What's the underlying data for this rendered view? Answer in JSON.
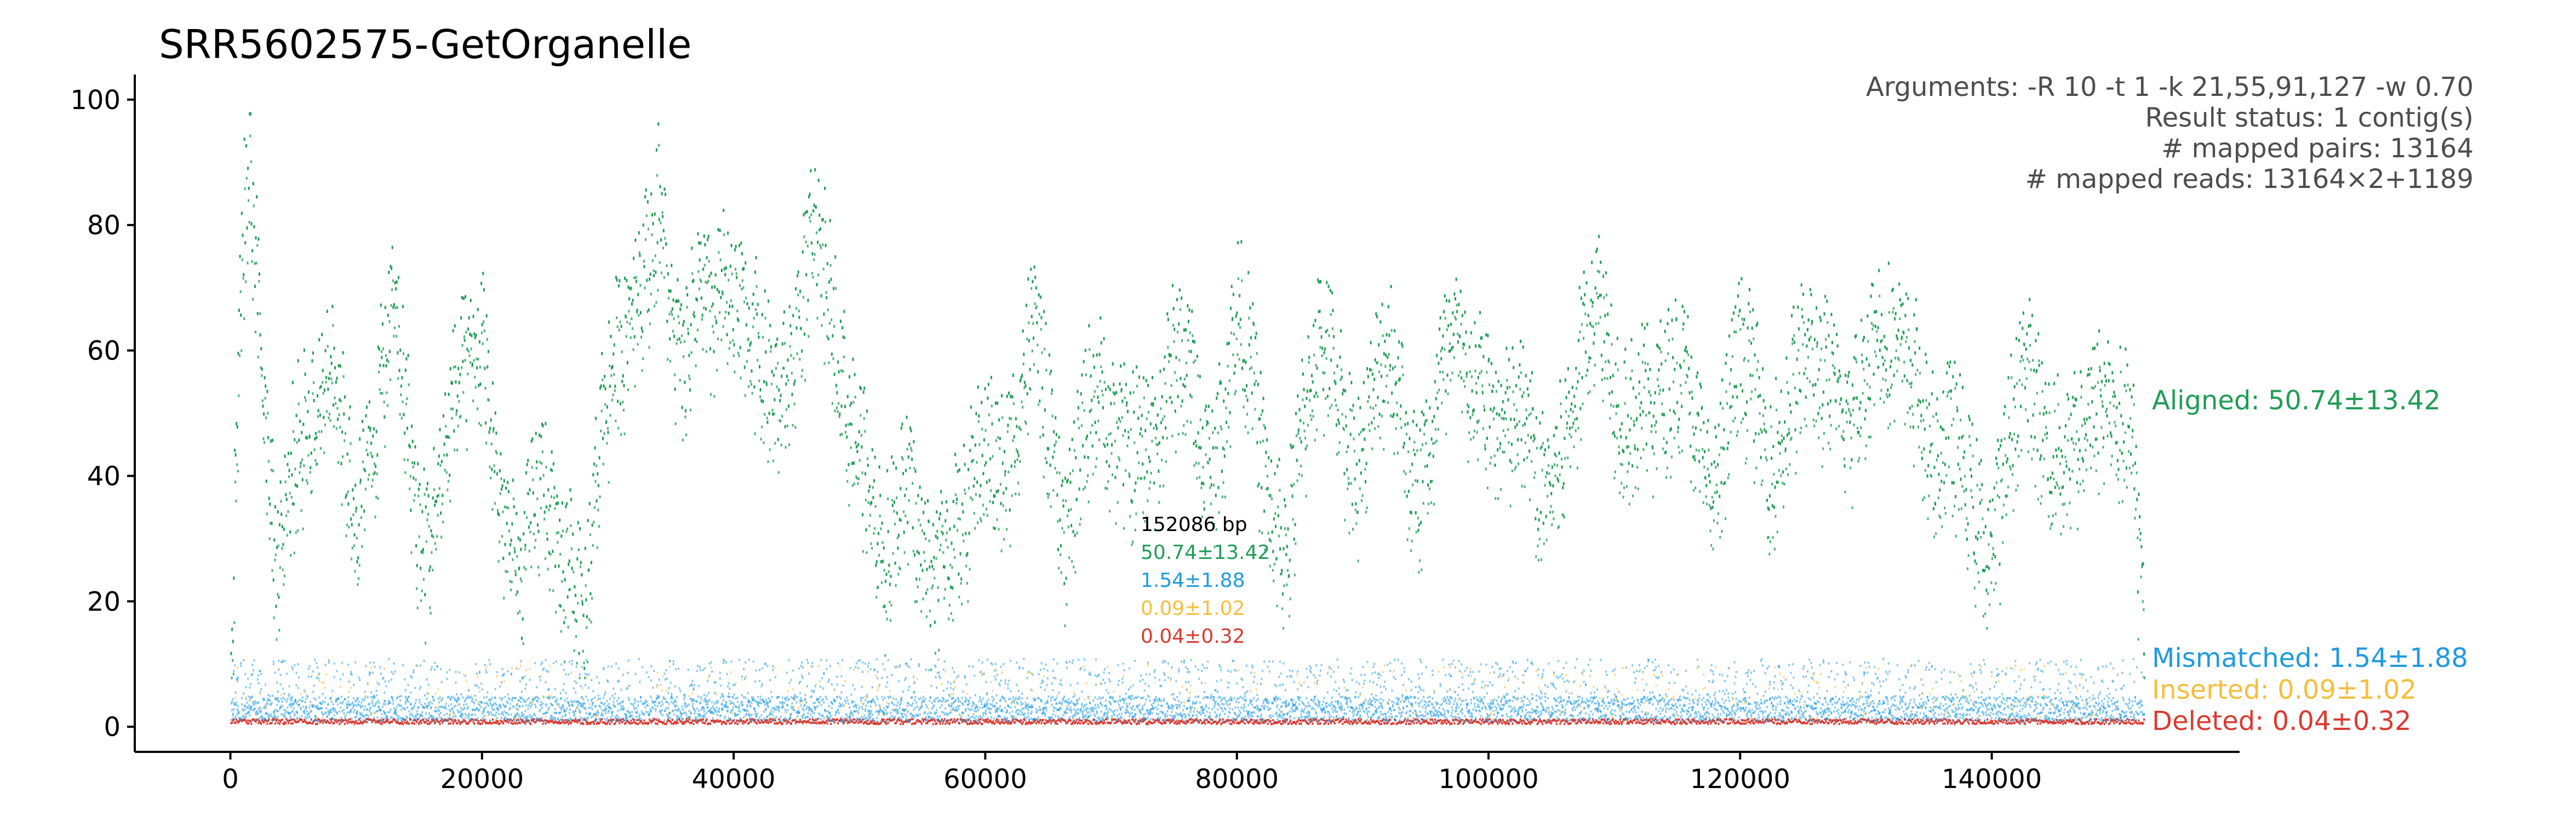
{
  "chart_data": {
    "type": "scatter",
    "title": "SRR5602575-GetOrganelle",
    "xlabel": "",
    "ylabel": "",
    "xlim": [
      -7600,
      159700
    ],
    "ylim": [
      -4,
      104
    ],
    "x_ticks": [
      0,
      20000,
      40000,
      60000,
      80000,
      100000,
      120000,
      140000
    ],
    "y_ticks": [
      0,
      20,
      40,
      60,
      80,
      100
    ],
    "grid": false,
    "genome_length_bp": 152086,
    "info_lines": [
      "Arguments: -R 10 -t 1 -k 21,55,91,127 -w 0.70",
      "Result status: 1 contig(s)",
      "# mapped pairs: 13164",
      "# mapped reads: 13164×2+1189"
    ],
    "middle_labels": {
      "length": "152086 bp",
      "aligned": "50.74±13.42",
      "mismatched": "1.54±1.88",
      "inserted": "0.09±1.02",
      "deleted": "0.04±0.32"
    },
    "series": [
      {
        "name": "Aligned",
        "label": "Aligned: 50.74±13.42",
        "color": "#1f9d55",
        "mean": 50.74,
        "sd": 13.42,
        "profile": [
          {
            "x": 0,
            "y": 10
          },
          {
            "x": 800,
            "y": 72
          },
          {
            "x": 1500,
            "y": 84
          },
          {
            "x": 2500,
            "y": 55
          },
          {
            "x": 3500,
            "y": 35
          },
          {
            "x": 5000,
            "y": 52
          },
          {
            "x": 7000,
            "y": 44
          },
          {
            "x": 8000,
            "y": 60
          },
          {
            "x": 10000,
            "y": 44
          },
          {
            "x": 12000,
            "y": 52
          },
          {
            "x": 13000,
            "y": 62
          },
          {
            "x": 15000,
            "y": 38
          },
          {
            "x": 17000,
            "y": 46
          },
          {
            "x": 19000,
            "y": 52
          },
          {
            "x": 20000,
            "y": 66
          },
          {
            "x": 22000,
            "y": 38
          },
          {
            "x": 23000,
            "y": 20
          },
          {
            "x": 25000,
            "y": 38
          },
          {
            "x": 26000,
            "y": 30
          },
          {
            "x": 27000,
            "y": 40
          },
          {
            "x": 28000,
            "y": 20
          },
          {
            "x": 29500,
            "y": 44
          },
          {
            "x": 31000,
            "y": 62
          },
          {
            "x": 32000,
            "y": 80
          },
          {
            "x": 34000,
            "y": 86
          },
          {
            "x": 35000,
            "y": 58
          },
          {
            "x": 36000,
            "y": 50
          },
          {
            "x": 37000,
            "y": 74
          },
          {
            "x": 39000,
            "y": 78
          },
          {
            "x": 40000,
            "y": 62
          },
          {
            "x": 42000,
            "y": 58
          },
          {
            "x": 44000,
            "y": 64
          },
          {
            "x": 46000,
            "y": 72
          },
          {
            "x": 48000,
            "y": 66
          },
          {
            "x": 50000,
            "y": 54
          },
          {
            "x": 51000,
            "y": 36
          },
          {
            "x": 52000,
            "y": 22
          },
          {
            "x": 54000,
            "y": 42
          },
          {
            "x": 56000,
            "y": 32
          },
          {
            "x": 58000,
            "y": 24
          },
          {
            "x": 60000,
            "y": 54
          },
          {
            "x": 62000,
            "y": 48
          },
          {
            "x": 64000,
            "y": 58
          },
          {
            "x": 66000,
            "y": 40
          },
          {
            "x": 68000,
            "y": 52
          },
          {
            "x": 70000,
            "y": 44
          },
          {
            "x": 72000,
            "y": 56
          },
          {
            "x": 74000,
            "y": 48
          },
          {
            "x": 76000,
            "y": 58
          },
          {
            "x": 78000,
            "y": 50
          },
          {
            "x": 80000,
            "y": 62
          },
          {
            "x": 82000,
            "y": 44
          },
          {
            "x": 84000,
            "y": 38
          },
          {
            "x": 86000,
            "y": 54
          },
          {
            "x": 88000,
            "y": 60
          },
          {
            "x": 90000,
            "y": 50
          },
          {
            "x": 92000,
            "y": 56
          },
          {
            "x": 94000,
            "y": 46
          },
          {
            "x": 96000,
            "y": 58
          },
          {
            "x": 98000,
            "y": 52
          },
          {
            "x": 100000,
            "y": 62
          },
          {
            "x": 102000,
            "y": 50
          },
          {
            "x": 104000,
            "y": 34
          },
          {
            "x": 106000,
            "y": 56
          },
          {
            "x": 108000,
            "y": 66
          },
          {
            "x": 110000,
            "y": 54
          },
          {
            "x": 112000,
            "y": 62
          },
          {
            "x": 114000,
            "y": 48
          },
          {
            "x": 116000,
            "y": 56
          },
          {
            "x": 118000,
            "y": 46
          },
          {
            "x": 120000,
            "y": 54
          },
          {
            "x": 122000,
            "y": 50
          },
          {
            "x": 124000,
            "y": 60
          },
          {
            "x": 126000,
            "y": 52
          },
          {
            "x": 128000,
            "y": 58
          },
          {
            "x": 130000,
            "y": 62
          },
          {
            "x": 132000,
            "y": 56
          },
          {
            "x": 134000,
            "y": 66
          },
          {
            "x": 135000,
            "y": 52
          },
          {
            "x": 136000,
            "y": 44
          },
          {
            "x": 138000,
            "y": 36
          },
          {
            "x": 140000,
            "y": 40
          },
          {
            "x": 142000,
            "y": 52
          },
          {
            "x": 144000,
            "y": 48
          },
          {
            "x": 146000,
            "y": 56
          },
          {
            "x": 148000,
            "y": 44
          },
          {
            "x": 150000,
            "y": 52
          },
          {
            "x": 151000,
            "y": 60
          },
          {
            "x": 152086,
            "y": 20
          }
        ]
      },
      {
        "name": "Mismatched",
        "label": "Mismatched: 1.54±1.88",
        "color": "#1f9ae0",
        "mean": 1.54,
        "sd": 1.88
      },
      {
        "name": "Inserted",
        "label": "Inserted: 0.09±1.02",
        "color": "#f5be3c",
        "mean": 0.09,
        "sd": 1.02
      },
      {
        "name": "Deleted",
        "label": "Deleted: 0.04±0.32",
        "color": "#d93b32",
        "mean": 0.04,
        "sd": 0.32
      }
    ]
  }
}
